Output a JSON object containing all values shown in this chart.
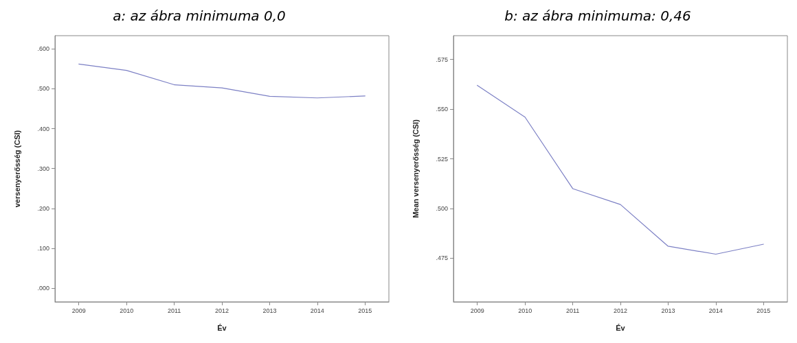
{
  "chart_data": [
    {
      "type": "line",
      "title": "a: az ábra minimuma 0,0",
      "xlabel": "Év",
      "ylabel": "versenyerősség (CSI)",
      "categories": [
        "2009",
        "2010",
        "2011",
        "2012",
        "2013",
        "2014",
        "2015"
      ],
      "series": [
        {
          "color": "#7b7fc4",
          "values": [
            0.562,
            0.546,
            0.51,
            0.502,
            0.481,
            0.477,
            0.482
          ]
        }
      ],
      "ylim": [
        -0.034,
        0.633
      ],
      "yticks": [
        {
          "value": 0,
          "label": ".000"
        },
        {
          "value": 0.1,
          "label": ".100"
        },
        {
          "value": 0.2,
          "label": ".200"
        },
        {
          "value": 0.3,
          "label": ".300"
        },
        {
          "value": 0.4,
          "label": ".400"
        },
        {
          "value": 0.5,
          "label": ".500"
        },
        {
          "value": 0.6,
          "label": ".600"
        }
      ],
      "grid": false,
      "marker": "none",
      "line_style": "solid"
    },
    {
      "type": "line",
      "title": "b: az ábra minimuma: 0,46",
      "xlabel": "Év",
      "ylabel": "Mean versenyerősség (CSI)",
      "categories": [
        "2009",
        "2010",
        "2011",
        "2012",
        "2013",
        "2014",
        "2015"
      ],
      "series": [
        {
          "color": "#7b7fc4",
          "values": [
            0.562,
            0.546,
            0.51,
            0.502,
            0.481,
            0.477,
            0.482
          ]
        }
      ],
      "ylim": [
        0.453,
        0.587
      ],
      "yticks": [
        {
          "value": 0.475,
          "label": ".475"
        },
        {
          "value": 0.5,
          "label": ".500"
        },
        {
          "value": 0.525,
          "label": ".525"
        },
        {
          "value": 0.55,
          "label": ".550"
        },
        {
          "value": 0.575,
          "label": ".575"
        }
      ],
      "grid": false,
      "marker": "none",
      "line_style": "solid"
    }
  ]
}
